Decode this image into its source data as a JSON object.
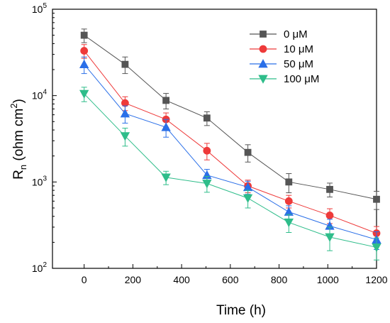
{
  "chart_data": {
    "type": "line",
    "xlabel": "Time (h)",
    "ylabel_main": "R",
    "ylabel_sub": "n",
    "ylabel_rest": " (ohm cm",
    "ylabel_sup": "2",
    "ylabel_close": ")",
    "yscale": "log",
    "xlim": [
      -130,
      1200
    ],
    "ylim": [
      100,
      100000
    ],
    "xticks": [
      0,
      200,
      400,
      600,
      800,
      1000,
      1200
    ],
    "xtick_labels": [
      "0",
      "200",
      "400",
      "600",
      "800",
      "1000",
      "1200"
    ],
    "yticks": [
      100,
      1000,
      10000,
      100000
    ],
    "ytick_base": "10",
    "ytick_exps": [
      "2",
      "3",
      "4",
      "5"
    ],
    "legend_position": "top-right",
    "grid": false,
    "x": [
      0,
      168,
      336,
      504,
      672,
      840,
      1008,
      1200
    ],
    "series": [
      {
        "name": "0 μM",
        "color": "#555555",
        "marker": "square",
        "values": [
          50000,
          23000,
          8800,
          5500,
          2200,
          1000,
          820,
          630
        ],
        "errors": [
          9000,
          5000,
          1800,
          1000,
          500,
          250,
          150,
          150
        ]
      },
      {
        "name": "10 μM",
        "color": "#ee3a3a",
        "marker": "circle",
        "values": [
          33000,
          8200,
          5300,
          2300,
          900,
          600,
          410,
          255
        ],
        "errors": [
          6000,
          1500,
          1000,
          500,
          150,
          100,
          80,
          50
        ]
      },
      {
        "name": "50 μM",
        "color": "#2a6fe8",
        "marker": "triangle-up",
        "values": [
          23000,
          6200,
          4300,
          1200,
          870,
          450,
          310,
          215
        ],
        "errors": [
          5000,
          1400,
          1000,
          200,
          150,
          80,
          60,
          50
        ]
      },
      {
        "name": "100 μM",
        "color": "#2ebd8a",
        "marker": "triangle-down",
        "values": [
          10500,
          3400,
          1130,
          960,
          650,
          340,
          230,
          175
        ],
        "errors": [
          2000,
          800,
          200,
          200,
          150,
          80,
          70,
          50
        ]
      }
    ]
  }
}
